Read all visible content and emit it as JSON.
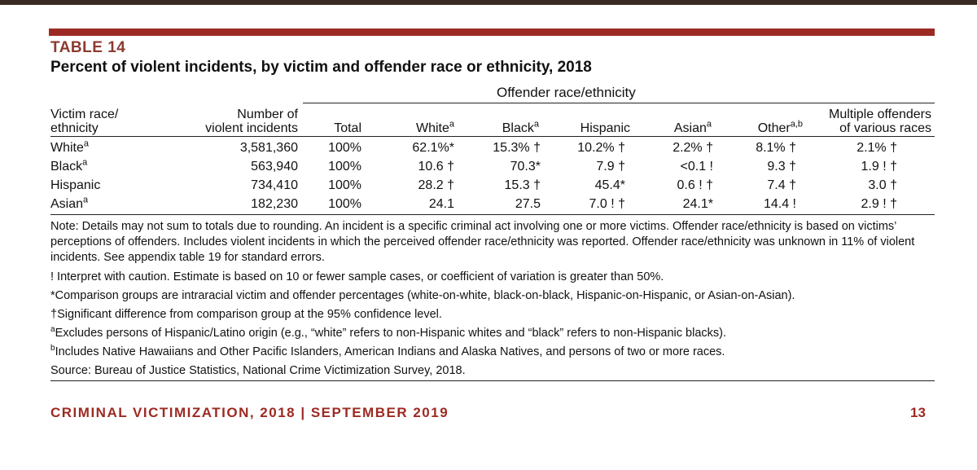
{
  "document": {
    "label": "TABLE 14",
    "title": "Percent of violent incidents, by victim and offender race or ethnicity, 2018",
    "offender_group_header": "Offender race/ethnicity"
  },
  "columns": {
    "victim_line1": "Victim race/",
    "victim_line2": "ethnicity",
    "number_line1": "Number of",
    "number_line2": "violent incidents",
    "total": "Total",
    "white": "White",
    "white_sup": "a",
    "black": "Black",
    "black_sup": "a",
    "hispanic": "Hispanic",
    "asian": "Asian",
    "asian_sup": "a",
    "other": "Other",
    "other_sup": "a,b",
    "multiple_line1": "Multiple offenders",
    "multiple_line2": "of various races"
  },
  "rows": [
    {
      "victim": "White",
      "sup": "a",
      "number": "3,581,360",
      "total": "100%",
      "white": "62.1%*",
      "black": "15.3% †",
      "hispanic": "10.2% †",
      "asian": "2.2% †",
      "other": "8.1% †",
      "multiple": "2.1% †"
    },
    {
      "victim": "Black",
      "sup": "a",
      "number": "563,940",
      "total": "100%",
      "white": "10.6 †",
      "black": "70.3*",
      "hispanic": "7.9 †",
      "asian": "<0.1 !",
      "other": "9.3 †",
      "multiple": "1.9 ! †"
    },
    {
      "victim": "Hispanic",
      "sup": "",
      "number": "734,410",
      "total": "100%",
      "white": "28.2 †",
      "black": "15.3 †",
      "hispanic": "45.4*",
      "asian": "0.6 ! †",
      "other": "7.4 †",
      "multiple": "3.0 †"
    },
    {
      "victim": "Asian",
      "sup": "a",
      "number": "182,230",
      "total": "100%",
      "white": "24.1",
      "black": "27.5",
      "hispanic": "7.0 ! †",
      "asian": "24.1*",
      "other": "14.4 !",
      "multiple": "2.9 ! †"
    }
  ],
  "notes": {
    "main": "Note: Details may not sum to totals due to rounding. An incident is a specific criminal act involving one or more victims. Offender race/ethnicity is based on victims’ perceptions of offenders. Includes violent incidents in which the perceived offender race/ethnicity was reported. Offender race/ethnicity was unknown in 11% of violent incidents. See appendix table 19 for standard errors.",
    "caution": "! Interpret with caution. Estimate is based on 10 or fewer sample cases, or coefficient of variation is greater than 50%.",
    "comparison": "*Comparison groups are intraracial victim and offender percentages (white-on-white, black-on-black, Hispanic-on-Hispanic, or Asian-on-Asian).",
    "significance": "†Significant difference from comparison group at the 95% confidence level.",
    "footnote_a_mark": "a",
    "footnote_a": "Excludes persons of Hispanic/Latino origin (e.g., “white” refers to non-Hispanic whites and “black” refers to non-Hispanic blacks).",
    "footnote_b_mark": "b",
    "footnote_b": "Includes Native Hawaiians and Other Pacific Islanders, American Indians and Alaska Natives, and persons of two or more races.",
    "source": "Source: Bureau of Justice Statistics, National Crime Victimization Survey, 2018."
  },
  "footer": {
    "publication": "CRIMINAL VICTIMIZATION, 2018 | SEPTEMBER 2019",
    "page_number": "13"
  },
  "colors": {
    "accent_red": "#9c2a22",
    "label_brown": "#8b3a30",
    "top_strip": "#3a2a24"
  }
}
